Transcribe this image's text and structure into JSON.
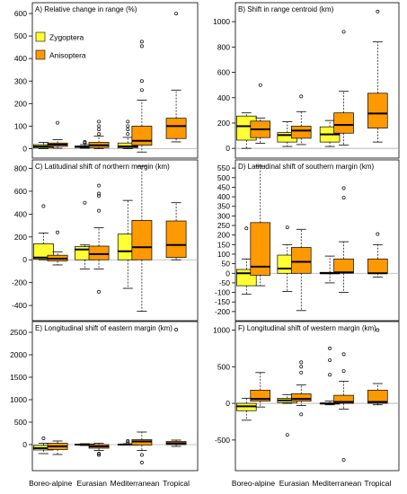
{
  "chart_data": [
    {
      "type": "boxplot",
      "title": "A) Relative change in range (%)",
      "categories": [
        "Boreo-alpine",
        "Eurasian",
        "Mediterranean",
        "Tropical"
      ],
      "ylim": [
        -10,
        620
      ],
      "yticks": [
        0,
        100,
        200,
        300,
        400,
        500,
        600
      ],
      "legend": {
        "placement": "top-left",
        "entries": [
          {
            "name": "Zygoptera",
            "color": "#ffff33"
          },
          {
            "name": "Anisoptera",
            "color": "#ff9900"
          }
        ]
      },
      "boxes": [
        {
          "category": "Boreo-alpine",
          "series": "Zygoptera",
          "lower": 0,
          "q1": 3,
          "median": 10,
          "q3": 18,
          "upper": 28,
          "outliers": []
        },
        {
          "category": "Boreo-alpine",
          "series": "Anisoptera",
          "lower": 2,
          "q1": 10,
          "median": 18,
          "q3": 25,
          "upper": 40,
          "outliers": [
            115
          ]
        },
        {
          "category": "Eurasian",
          "series": "Zygoptera",
          "lower": 2,
          "q1": 5,
          "median": 8,
          "q3": 12,
          "upper": 18,
          "outliers": [
            25,
            30
          ]
        },
        {
          "category": "Eurasian",
          "series": "Anisoptera",
          "lower": 0,
          "q1": 5,
          "median": 15,
          "q3": 28,
          "upper": 55,
          "outliers": [
            65,
            85,
            100,
            120
          ]
        },
        {
          "category": "Mediterranean",
          "series": "Zygoptera",
          "lower": 0,
          "q1": 3,
          "median": 10,
          "q3": 25,
          "upper": 50,
          "outliers": [
            65,
            85,
            100,
            120
          ]
        },
        {
          "category": "Mediterranean",
          "series": "Anisoptera",
          "lower": -15,
          "q1": 15,
          "median": 35,
          "q3": 100,
          "upper": 215,
          "outliers": [
            260,
            300,
            455,
            475
          ]
        },
        {
          "category": "Tropical",
          "series": "Anisoptera",
          "lower": 30,
          "q1": 45,
          "median": 100,
          "q3": 135,
          "upper": 260,
          "outliers": [
            600
          ]
        }
      ]
    },
    {
      "type": "boxplot",
      "title": "B) Shift in range centroid (km)",
      "categories": [
        "Boreo-alpine",
        "Eurasian",
        "Mediterranean",
        "Tropical"
      ],
      "ylim": [
        -20,
        1100
      ],
      "yticks": [
        0,
        200,
        400,
        600,
        800,
        1000
      ],
      "boxes": [
        {
          "category": "Boreo-alpine",
          "series": "Zygoptera",
          "lower": 0,
          "q1": 65,
          "median": 175,
          "q3": 255,
          "upper": 280,
          "outliers": []
        },
        {
          "category": "Boreo-alpine",
          "series": "Anisoptera",
          "lower": 40,
          "q1": 85,
          "median": 150,
          "q3": 215,
          "upper": 240,
          "outliers": [
            500
          ]
        },
        {
          "category": "Eurasian",
          "series": "Zygoptera",
          "lower": 15,
          "q1": 50,
          "median": 105,
          "q3": 125,
          "upper": 210,
          "outliers": []
        },
        {
          "category": "Eurasian",
          "series": "Anisoptera",
          "lower": 30,
          "q1": 80,
          "median": 140,
          "q3": 175,
          "upper": 290,
          "outliers": [
            410
          ]
        },
        {
          "category": "Mediterranean",
          "series": "Zygoptera",
          "lower": 15,
          "q1": 50,
          "median": 110,
          "q3": 170,
          "upper": 220,
          "outliers": []
        },
        {
          "category": "Mediterranean",
          "series": "Anisoptera",
          "lower": 25,
          "q1": 120,
          "median": 185,
          "q3": 280,
          "upper": 450,
          "outliers": [
            920
          ]
        },
        {
          "category": "Tropical",
          "series": "Anisoptera",
          "lower": 50,
          "q1": 160,
          "median": 275,
          "q3": 435,
          "upper": 840,
          "outliers": [
            1080
          ]
        }
      ]
    },
    {
      "type": "boxplot",
      "title": "C) Latitudinal shift of northern margin (km)",
      "categories": [
        "Boreo-alpine",
        "Eurasian",
        "Mediterranean",
        "Tropical"
      ],
      "ylim": [
        -470,
        820
      ],
      "yticks": [
        -400,
        -200,
        0,
        200,
        400,
        600,
        800
      ],
      "boxes": [
        {
          "category": "Boreo-alpine",
          "series": "Zygoptera",
          "lower": 0,
          "q1": 5,
          "median": 20,
          "q3": 140,
          "upper": 235,
          "outliers": [
            470
          ]
        },
        {
          "category": "Boreo-alpine",
          "series": "Anisoptera",
          "lower": -45,
          "q1": -10,
          "median": 10,
          "q3": 40,
          "upper": 70,
          "outliers": [
            240
          ]
        },
        {
          "category": "Eurasian",
          "series": "Zygoptera",
          "lower": -80,
          "q1": 0,
          "median": 90,
          "q3": 115,
          "upper": 130,
          "outliers": [
            500
          ]
        },
        {
          "category": "Eurasian",
          "series": "Anisoptera",
          "lower": -80,
          "q1": 0,
          "median": 50,
          "q3": 120,
          "upper": 280,
          "outliers": [
            -280,
            430,
            560,
            580,
            650
          ]
        },
        {
          "category": "Mediterranean",
          "series": "Zygoptera",
          "lower": -250,
          "q1": 0,
          "median": 75,
          "q3": 225,
          "upper": 520,
          "outliers": []
        },
        {
          "category": "Mediterranean",
          "series": "Anisoptera",
          "lower": -450,
          "q1": 0,
          "median": 110,
          "q3": 345,
          "upper": 820,
          "outliers": []
        },
        {
          "category": "Tropical",
          "series": "Anisoptera",
          "lower": 0,
          "q1": 20,
          "median": 130,
          "q3": 340,
          "upper": 500,
          "outliers": []
        }
      ]
    },
    {
      "type": "boxplot",
      "title": "D) Latitudinal shift of southern margin (km)",
      "categories": [
        "Boreo-alpine",
        "Eurasian",
        "Mediterranean",
        "Tropical"
      ],
      "ylim": [
        -210,
        560
      ],
      "yticks": [
        -200,
        -150,
        -100,
        -50,
        0,
        50,
        100,
        150,
        200,
        250,
        300,
        350,
        400,
        450,
        500,
        550
      ],
      "boxes": [
        {
          "category": "Boreo-alpine",
          "series": "Zygoptera",
          "lower": -110,
          "q1": -65,
          "median": 0,
          "q3": 20,
          "upper": 75,
          "outliers": [
            235
          ]
        },
        {
          "category": "Boreo-alpine",
          "series": "Anisoptera",
          "lower": -65,
          "q1": -10,
          "median": 35,
          "q3": 265,
          "upper": 560,
          "outliers": []
        },
        {
          "category": "Eurasian",
          "series": "Zygoptera",
          "lower": -95,
          "q1": 0,
          "median": 25,
          "q3": 95,
          "upper": 150,
          "outliers": [
            240
          ]
        },
        {
          "category": "Eurasian",
          "series": "Anisoptera",
          "lower": -195,
          "q1": 0,
          "median": 60,
          "q3": 135,
          "upper": 230,
          "outliers": []
        },
        {
          "category": "Mediterranean",
          "series": "Zygoptera",
          "lower": -50,
          "q1": 0,
          "median": 0,
          "q3": 5,
          "upper": 90,
          "outliers": []
        },
        {
          "category": "Mediterranean",
          "series": "Anisoptera",
          "lower": -100,
          "q1": 0,
          "median": 5,
          "q3": 75,
          "upper": 165,
          "outliers": [
            395,
            445
          ]
        },
        {
          "category": "Tropical",
          "series": "Anisoptera",
          "lower": -20,
          "q1": 0,
          "median": 0,
          "q3": 75,
          "upper": 150,
          "outliers": [
            205
          ]
        }
      ]
    },
    {
      "type": "boxplot",
      "title": "E) Longitudinal shift of eastern margin (km)",
      "categories": [
        "Boreo-alpine",
        "Eurasian",
        "Mediterranean",
        "Tropical"
      ],
      "ylim": [
        -420,
        2600
      ],
      "yticks": [
        0,
        500,
        1000,
        1500,
        2000,
        2500
      ],
      "boxes": [
        {
          "category": "Boreo-alpine",
          "series": "Zygoptera",
          "lower": -200,
          "q1": -120,
          "median": -80,
          "q3": -20,
          "upper": 30,
          "outliers": [
            140
          ]
        },
        {
          "category": "Boreo-alpine",
          "series": "Anisoptera",
          "lower": -220,
          "q1": -110,
          "median": -40,
          "q3": 30,
          "upper": 80,
          "outliers": []
        },
        {
          "category": "Eurasian",
          "series": "Zygoptera",
          "lower": -20,
          "q1": -5,
          "median": 0,
          "q3": 5,
          "upper": 20,
          "outliers": []
        },
        {
          "category": "Eurasian",
          "series": "Anisoptera",
          "lower": -130,
          "q1": -80,
          "median": -40,
          "q3": 0,
          "upper": 30,
          "outliers": [
            -200,
            -230
          ]
        },
        {
          "category": "Mediterranean",
          "series": "Zygoptera",
          "lower": -5,
          "q1": 0,
          "median": 0,
          "q3": 5,
          "upper": 20,
          "outliers": [
            50,
            80
          ]
        },
        {
          "category": "Mediterranean",
          "series": "Anisoptera",
          "lower": -130,
          "q1": -10,
          "median": 70,
          "q3": 110,
          "upper": 280,
          "outliers": [
            -230,
            -400
          ]
        },
        {
          "category": "Tropical",
          "series": "Anisoptera",
          "lower": -40,
          "q1": 0,
          "median": 30,
          "q3": 70,
          "upper": 100,
          "outliers": [
            2560
          ]
        }
      ]
    },
    {
      "type": "boxplot",
      "title": "F) Longitudinal shift of western margin (km)",
      "categories": [
        "Boreo-alpine",
        "Eurasian",
        "Mediterranean",
        "Tropical"
      ],
      "ylim": [
        -820,
        1030
      ],
      "yticks": [
        -500,
        0,
        500,
        1000
      ],
      "boxes": [
        {
          "category": "Boreo-alpine",
          "series": "Zygoptera",
          "lower": -230,
          "q1": -100,
          "median": -40,
          "q3": 0,
          "upper": 70,
          "outliers": []
        },
        {
          "category": "Boreo-alpine",
          "series": "Anisoptera",
          "lower": -50,
          "q1": 30,
          "median": 60,
          "q3": 180,
          "upper": 420,
          "outliers": []
        },
        {
          "category": "Eurasian",
          "series": "Zygoptera",
          "lower": 0,
          "q1": 10,
          "median": 40,
          "q3": 70,
          "upper": 120,
          "outliers": [
            -430
          ]
        },
        {
          "category": "Eurasian",
          "series": "Anisoptera",
          "lower": -30,
          "q1": 30,
          "median": 60,
          "q3": 130,
          "upper": 250,
          "outliers": [
            -150,
            420,
            500,
            560
          ]
        },
        {
          "category": "Mediterranean",
          "series": "Zygoptera",
          "lower": -20,
          "q1": 0,
          "median": 0,
          "q3": 0,
          "upper": 30,
          "outliers": [
            390,
            590,
            750
          ]
        },
        {
          "category": "Mediterranean",
          "series": "Anisoptera",
          "lower": -80,
          "q1": 0,
          "median": 20,
          "q3": 110,
          "upper": 300,
          "outliers": [
            -770,
            440,
            670
          ]
        },
        {
          "category": "Tropical",
          "series": "Anisoptera",
          "lower": -20,
          "q1": 0,
          "median": 20,
          "q3": 180,
          "upper": 270,
          "outliers": [
            1000
          ]
        }
      ]
    }
  ],
  "colors": {
    "zygoptera": "#ffff33",
    "anisoptera": "#ff9900"
  }
}
